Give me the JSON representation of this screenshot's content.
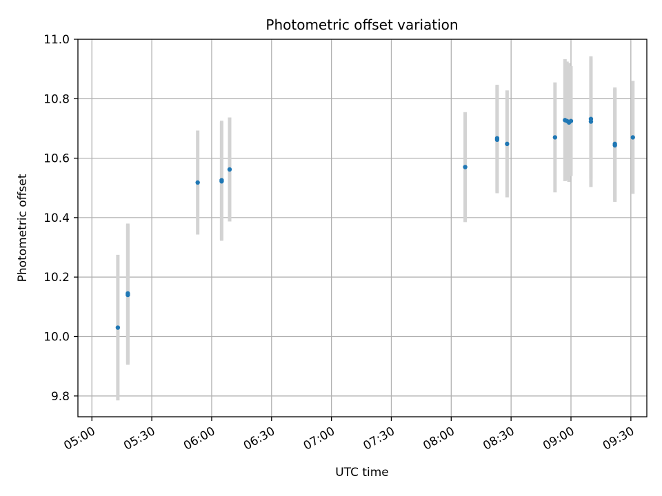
{
  "chart_data": {
    "type": "scatter",
    "title": "Photometric offset variation",
    "xlabel": "UTC time",
    "ylabel": "Photometric offset",
    "x_unit": "UTC time (HH:MM)",
    "xlim": [
      "04:53",
      "09:38"
    ],
    "ylim": [
      9.73,
      11.0
    ],
    "xticks": [
      "05:00",
      "05:30",
      "06:00",
      "06:30",
      "07:00",
      "07:30",
      "08:00",
      "08:30",
      "09:00",
      "09:30"
    ],
    "yticks": [
      9.8,
      10.0,
      10.2,
      10.4,
      10.6,
      10.8,
      11.0
    ],
    "ytick_labels": [
      "9.8",
      "10.0",
      "10.2",
      "10.4",
      "10.6",
      "10.8",
      "11.0"
    ],
    "grid": true,
    "legend": "none",
    "colors": {
      "point": "#1f77b4",
      "errorbar": "#d3d3d3",
      "grid": "#b0b0b0"
    },
    "points": [
      {
        "x": "05:13",
        "y": 10.03,
        "err": 0.245
      },
      {
        "x": "05:18",
        "y": 10.14,
        "err": 0.235
      },
      {
        "x": "05:18",
        "y": 10.145,
        "err": 0.235
      },
      {
        "x": "05:53",
        "y": 10.518,
        "err": 0.175
      },
      {
        "x": "06:05",
        "y": 10.522,
        "err": 0.2
      },
      {
        "x": "06:05",
        "y": 10.526,
        "err": 0.2
      },
      {
        "x": "06:09",
        "y": 10.562,
        "err": 0.175
      },
      {
        "x": "08:07",
        "y": 10.57,
        "err": 0.185
      },
      {
        "x": "08:23",
        "y": 10.662,
        "err": 0.18
      },
      {
        "x": "08:23",
        "y": 10.667,
        "err": 0.18
      },
      {
        "x": "08:28",
        "y": 10.648,
        "err": 0.18
      },
      {
        "x": "08:52",
        "y": 10.67,
        "err": 0.185
      },
      {
        "x": "08:57",
        "y": 10.728,
        "err": 0.205
      },
      {
        "x": "08:58",
        "y": 10.725,
        "err": 0.2
      },
      {
        "x": "08:59",
        "y": 10.72,
        "err": 0.2
      },
      {
        "x": "09:00",
        "y": 10.725,
        "err": 0.185
      },
      {
        "x": "09:10",
        "y": 10.732,
        "err": 0.2
      },
      {
        "x": "09:10",
        "y": 10.723,
        "err": 0.22
      },
      {
        "x": "09:22",
        "y": 10.643,
        "err": 0.19
      },
      {
        "x": "09:22",
        "y": 10.648,
        "err": 0.19
      },
      {
        "x": "09:31",
        "y": 10.67,
        "err": 0.19
      }
    ]
  }
}
